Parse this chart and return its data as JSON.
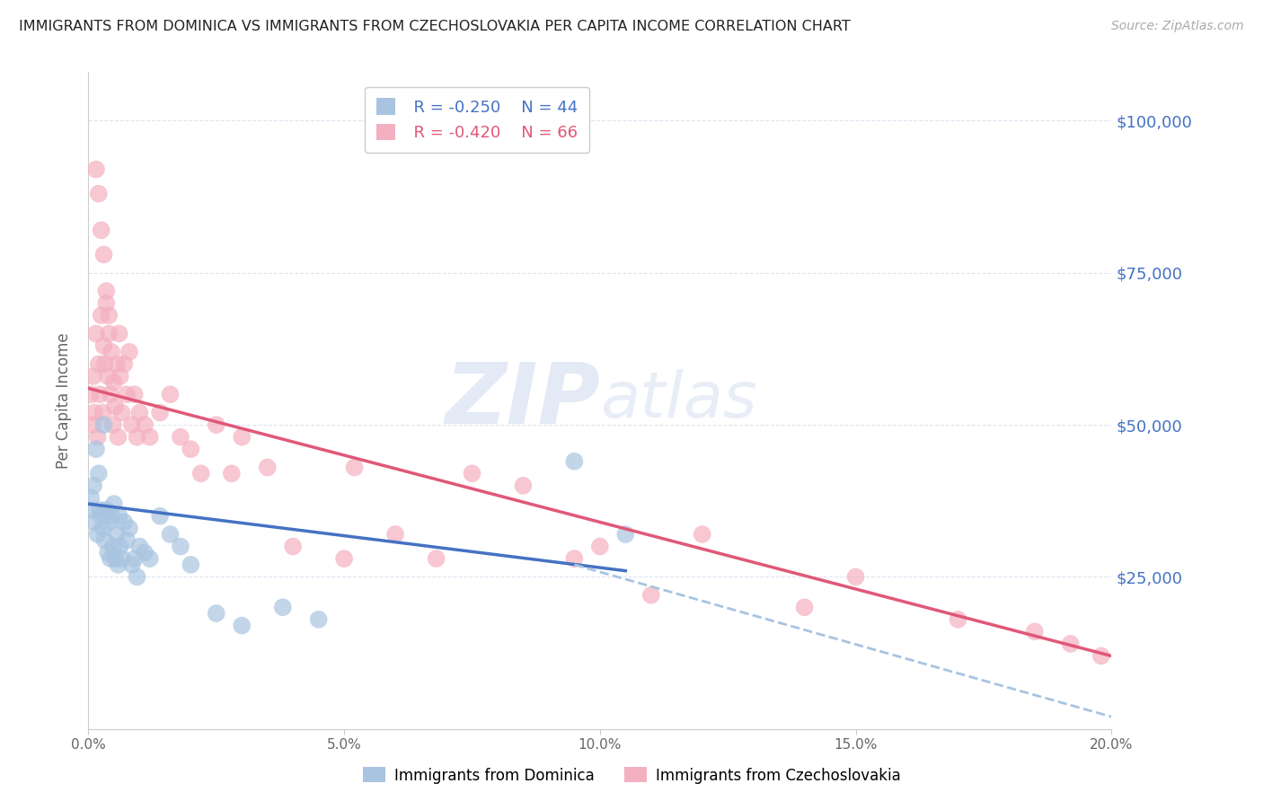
{
  "title": "IMMIGRANTS FROM DOMINICA VS IMMIGRANTS FROM CZECHOSLOVAKIA PER CAPITA INCOME CORRELATION CHART",
  "source": "Source: ZipAtlas.com",
  "ylabel": "Per Capita Income",
  "xlabel_ticks": [
    "0.0%",
    "5.0%",
    "10.0%",
    "15.0%",
    "20.0%"
  ],
  "xlabel_vals": [
    0.0,
    5.0,
    10.0,
    15.0,
    20.0
  ],
  "yticks": [
    25000,
    50000,
    75000,
    100000
  ],
  "ytick_labels": [
    "$25,000",
    "$50,000",
    "$75,000",
    "$100,000"
  ],
  "xlim": [
    0.0,
    20.0
  ],
  "ylim": [
    0,
    108000
  ],
  "color_dominica": "#a8c4e0",
  "color_czech": "#f4b0c0",
  "color_trendline_dominica": "#4472c4",
  "color_trendline_czech": "#e05878",
  "color_dashed": "#a8c4e0",
  "legend_R_dominica": "R = -0.250",
  "legend_N_dominica": "N = 44",
  "legend_R_czech": "R = -0.420",
  "legend_N_czech": "N = 66",
  "legend_label_dominica": "Immigrants from Dominica",
  "legend_label_czech": "Immigrants from Czechoslovakia",
  "watermark_zip": "ZIP",
  "watermark_atlas": "atlas",
  "title_color": "#222222",
  "source_color": "#aaaaaa",
  "axis_label_color": "#4472c4",
  "grid_color": "#dde4f0",
  "dominica_x": [
    0.05,
    0.08,
    0.1,
    0.12,
    0.15,
    0.18,
    0.2,
    0.22,
    0.25,
    0.28,
    0.3,
    0.32,
    0.35,
    0.38,
    0.4,
    0.43,
    0.45,
    0.48,
    0.5,
    0.52,
    0.55,
    0.58,
    0.6,
    0.62,
    0.65,
    0.7,
    0.75,
    0.8,
    0.85,
    0.9,
    0.95,
    1.0,
    1.1,
    1.2,
    1.4,
    1.6,
    1.8,
    2.0,
    2.5,
    3.0,
    3.8,
    4.5,
    9.5,
    10.5
  ],
  "dominica_y": [
    38000,
    36000,
    40000,
    34000,
    46000,
    32000,
    42000,
    36000,
    35000,
    33000,
    50000,
    31000,
    36000,
    29000,
    34000,
    28000,
    35000,
    30000,
    37000,
    28000,
    32000,
    27000,
    35000,
    30000,
    28000,
    34000,
    31000,
    33000,
    27000,
    28000,
    25000,
    30000,
    29000,
    28000,
    35000,
    32000,
    30000,
    27000,
    19000,
    17000,
    20000,
    18000,
    44000,
    32000
  ],
  "czech_x": [
    0.05,
    0.08,
    0.1,
    0.12,
    0.15,
    0.18,
    0.2,
    0.22,
    0.25,
    0.28,
    0.3,
    0.32,
    0.35,
    0.38,
    0.4,
    0.43,
    0.45,
    0.48,
    0.5,
    0.52,
    0.55,
    0.58,
    0.6,
    0.62,
    0.65,
    0.7,
    0.75,
    0.8,
    0.85,
    0.9,
    0.95,
    1.0,
    1.1,
    1.2,
    1.4,
    1.6,
    1.8,
    2.0,
    2.2,
    2.5,
    2.8,
    3.0,
    3.5,
    4.0,
    5.0,
    5.2,
    6.0,
    6.8,
    7.5,
    8.5,
    9.5,
    10.0,
    11.0,
    12.0,
    14.0,
    15.0,
    17.0,
    18.5,
    19.2,
    19.8,
    0.15,
    0.2,
    0.25,
    0.3,
    0.35,
    0.4
  ],
  "czech_y": [
    55000,
    50000,
    58000,
    52000,
    65000,
    48000,
    60000,
    55000,
    68000,
    52000,
    63000,
    60000,
    70000,
    58000,
    65000,
    55000,
    62000,
    50000,
    57000,
    53000,
    60000,
    48000,
    65000,
    58000,
    52000,
    60000,
    55000,
    62000,
    50000,
    55000,
    48000,
    52000,
    50000,
    48000,
    52000,
    55000,
    48000,
    46000,
    42000,
    50000,
    42000,
    48000,
    43000,
    30000,
    28000,
    43000,
    32000,
    28000,
    42000,
    40000,
    28000,
    30000,
    22000,
    32000,
    20000,
    25000,
    18000,
    16000,
    14000,
    12000,
    92000,
    88000,
    82000,
    78000,
    72000,
    68000
  ],
  "dominica_trend_x": [
    0.0,
    10.5
  ],
  "dominica_trend_y": [
    37000,
    26000
  ],
  "czech_trend_x": [
    0.0,
    20.0
  ],
  "czech_trend_y": [
    56000,
    12000
  ],
  "dashed_trend_x": [
    9.5,
    20.0
  ],
  "dashed_trend_y": [
    27000,
    2000
  ]
}
